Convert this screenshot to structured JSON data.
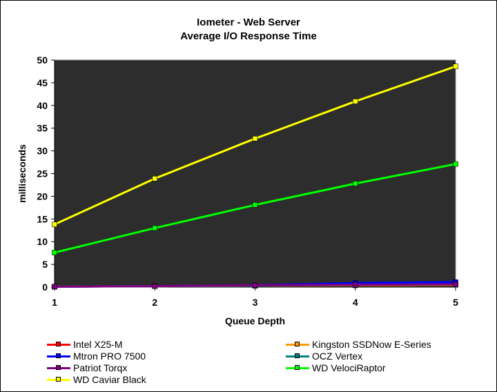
{
  "chart_data": {
    "type": "line",
    "title": "Iometer - Web Server",
    "subtitle": "Average I/O Response Time",
    "xlabel": "Queue Depth",
    "ylabel": "milliseconds",
    "x": [
      1,
      2,
      3,
      4,
      5
    ],
    "xlim": [
      1,
      5
    ],
    "ylim": [
      0,
      50
    ],
    "yticks": [
      0,
      5,
      10,
      15,
      20,
      25,
      30,
      35,
      40,
      45,
      50
    ],
    "grid": false,
    "plot_background": "#2d2d2d",
    "legend_position": "bottom",
    "series": [
      {
        "name": "Intel X25-M",
        "color": "#ff0000",
        "values": [
          0.1,
          0.2,
          0.3,
          0.4,
          0.5
        ]
      },
      {
        "name": "Kingston SSDNow E-Series",
        "color": "#ff9900",
        "values": [
          0.1,
          0.2,
          0.3,
          0.4,
          0.5
        ]
      },
      {
        "name": "Mtron PRO 7500",
        "color": "#0000ff",
        "values": [
          0.1,
          0.2,
          0.4,
          0.9,
          1.1
        ]
      },
      {
        "name": "OCZ Vertex",
        "color": "#008080",
        "values": [
          0.1,
          0.2,
          0.3,
          0.5,
          0.6
        ]
      },
      {
        "name": "Patriot Torqx",
        "color": "#800080",
        "values": [
          0.1,
          0.2,
          0.4,
          0.5,
          0.6
        ]
      },
      {
        "name": "WD VelociRaptor",
        "color": "#00ff00",
        "values": [
          7.6,
          13.0,
          18.1,
          22.8,
          27.1
        ]
      },
      {
        "name": "WD Caviar Black",
        "color": "#ffff00",
        "values": [
          13.8,
          23.9,
          32.7,
          40.9,
          48.6
        ]
      }
    ]
  }
}
